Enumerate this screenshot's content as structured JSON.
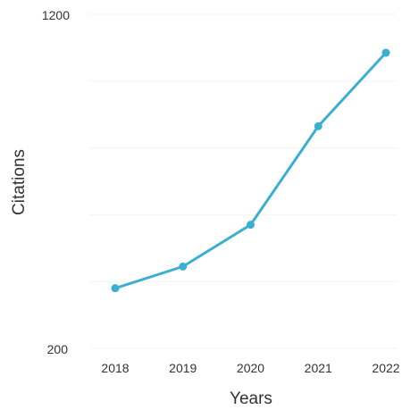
{
  "chart_data": {
    "type": "line",
    "x": [
      "2018",
      "2019",
      "2020",
      "2021",
      "2022"
    ],
    "series": [
      {
        "values": [
          380,
          445,
          570,
          865,
          1085
        ]
      }
    ],
    "title": "",
    "xlabel": "Years",
    "ylabel": "Citations",
    "ylim": [
      200,
      1200
    ],
    "y_tick_labels": [
      "1200",
      "200"
    ],
    "grid": true,
    "legend": "none",
    "colors": {
      "line": "#3bafd0",
      "marker": "#3bafd0",
      "grid": "#f3f3f3",
      "text": "#333333"
    }
  }
}
